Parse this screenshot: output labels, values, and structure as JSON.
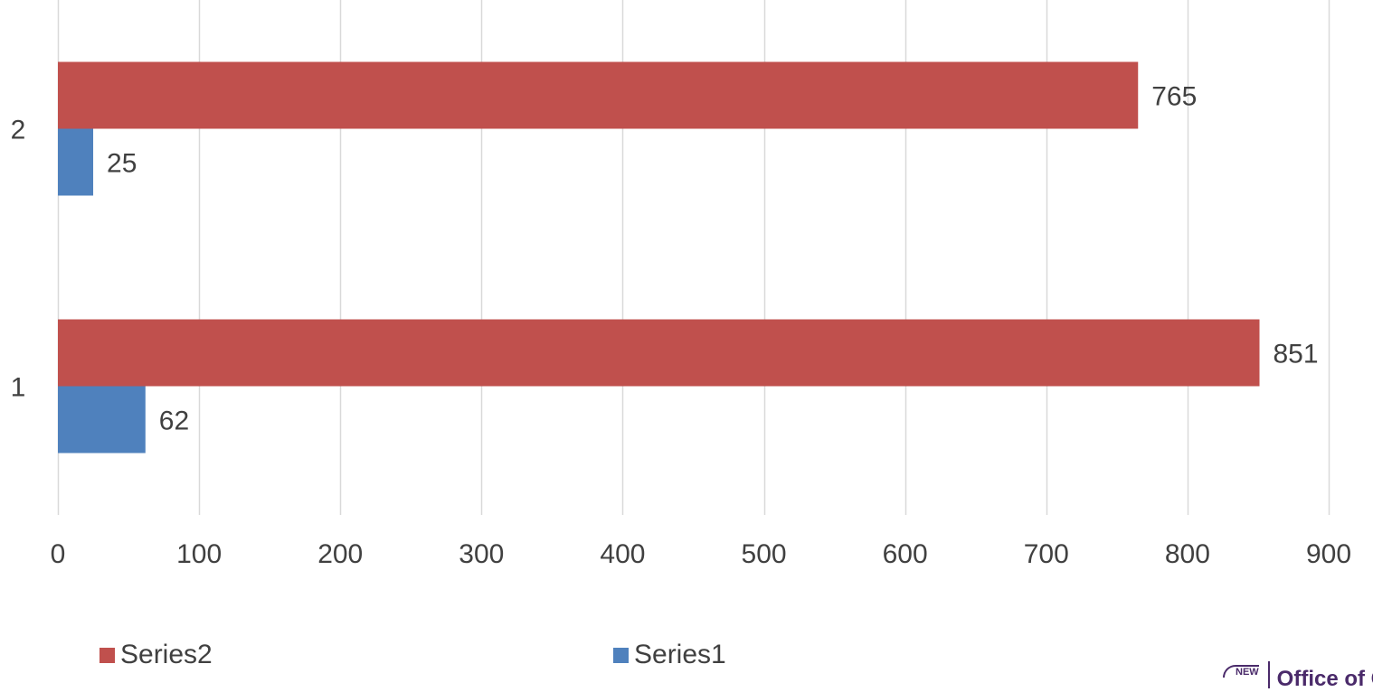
{
  "chart_data": {
    "type": "bar",
    "orientation": "horizontal",
    "categories": [
      "1",
      "2"
    ],
    "series": [
      {
        "name": "Series2",
        "values": [
          851,
          765
        ],
        "color": "#c0504d"
      },
      {
        "name": "Series1",
        "values": [
          62,
          25
        ],
        "color": "#4f81bd"
      }
    ],
    "xticks": [
      "0",
      "100",
      "200",
      "300",
      "400",
      "500",
      "600",
      "700",
      "800",
      "900"
    ],
    "xlim": [
      0,
      900
    ],
    "grid": true,
    "legend_position": "bottom",
    "title": "",
    "xlabel": "",
    "ylabel": ""
  },
  "logo": {
    "mark": "NEW",
    "text": "Office of Child"
  }
}
